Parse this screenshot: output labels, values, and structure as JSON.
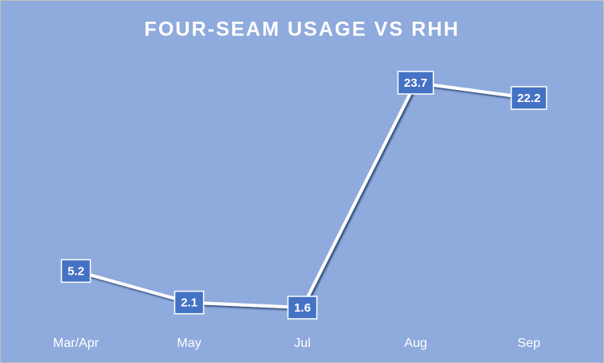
{
  "chart_data": {
    "type": "line",
    "title": "FOUR-SEAM USAGE VS RHH",
    "categories": [
      "Mar/Apr",
      "May",
      "Jul",
      "Aug",
      "Sep"
    ],
    "values": [
      5.2,
      2.1,
      1.6,
      23.7,
      22.2
    ],
    "color": "#ffffff",
    "label_color": "#4472c4",
    "background": "#8faadc"
  }
}
